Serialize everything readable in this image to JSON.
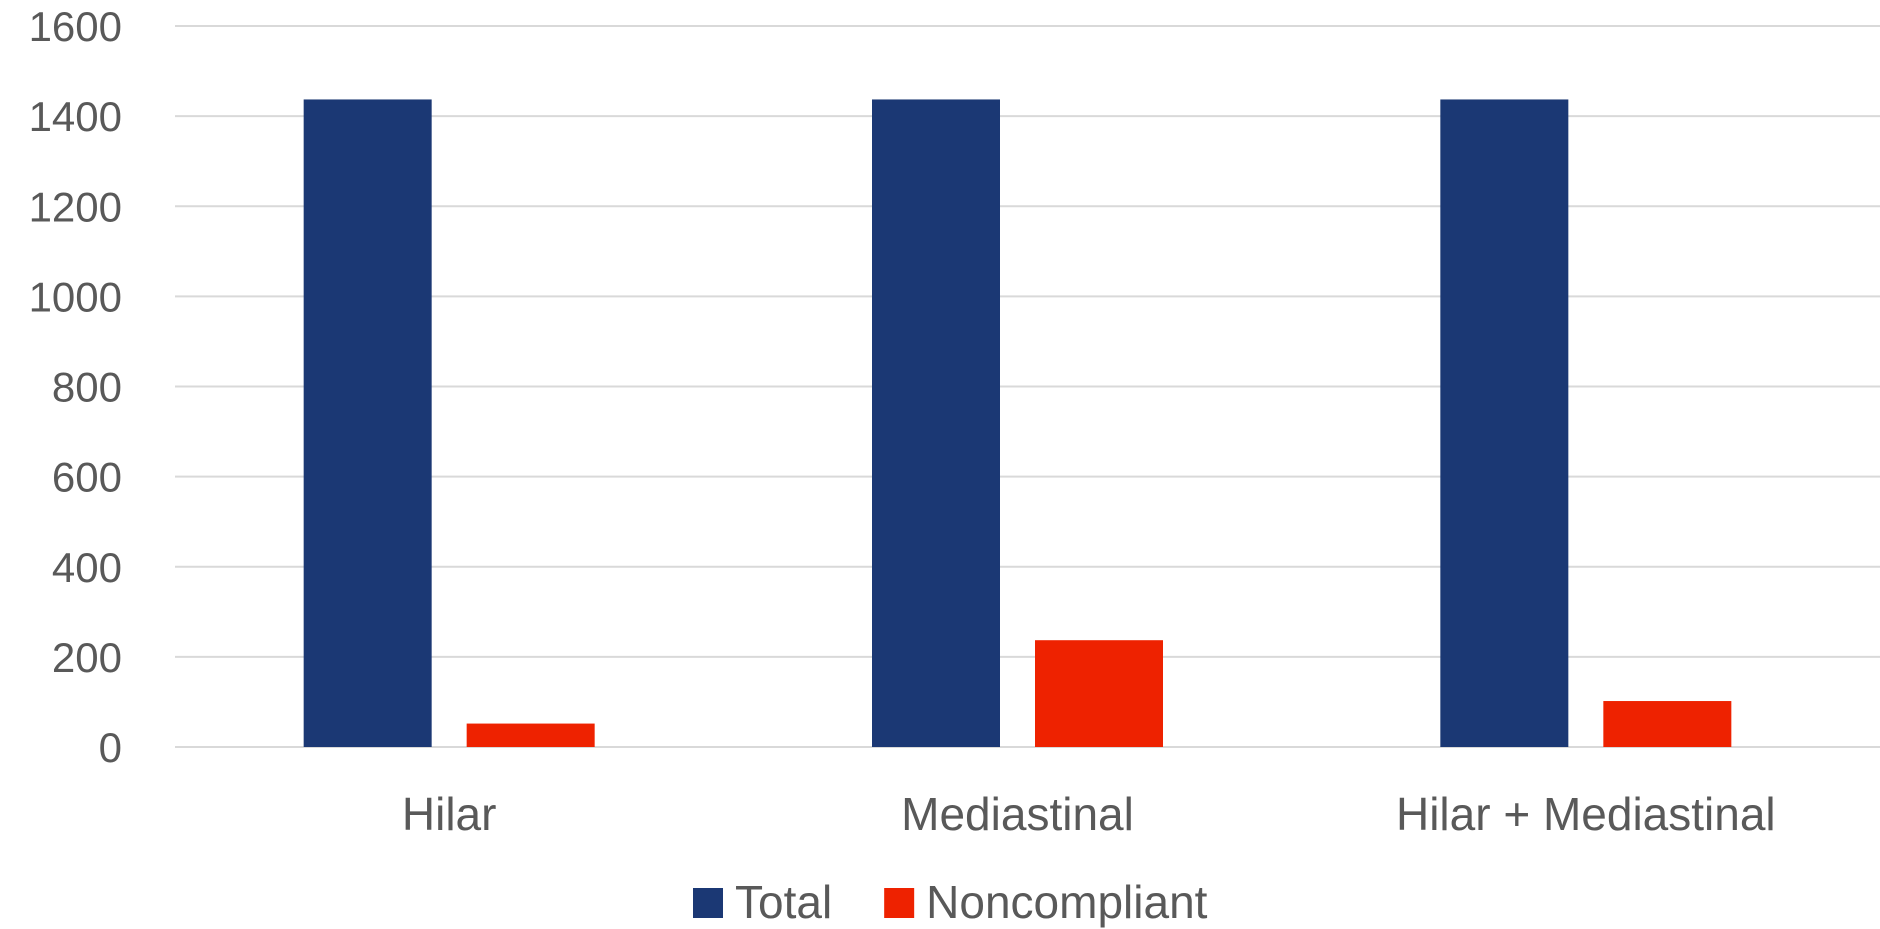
{
  "chart_data": {
    "type": "bar",
    "title": "",
    "xlabel": "",
    "ylabel": "",
    "categories": [
      "Hilar",
      "Mediastinal",
      "Hilar + Mediastinal"
    ],
    "series": [
      {
        "name": "Total",
        "color": "#1b3874",
        "values": [
          1437,
          1437,
          1437
        ]
      },
      {
        "name": "Noncompliant",
        "color": "#ee2200",
        "values": [
          52,
          237,
          102
        ]
      }
    ],
    "ylim": [
      0,
      1600
    ],
    "yticks": [
      0,
      200,
      400,
      600,
      800,
      1000,
      1200,
      1400,
      1600
    ],
    "grid": true,
    "gridColor": "#d9d9d9",
    "legend": "bottom"
  }
}
